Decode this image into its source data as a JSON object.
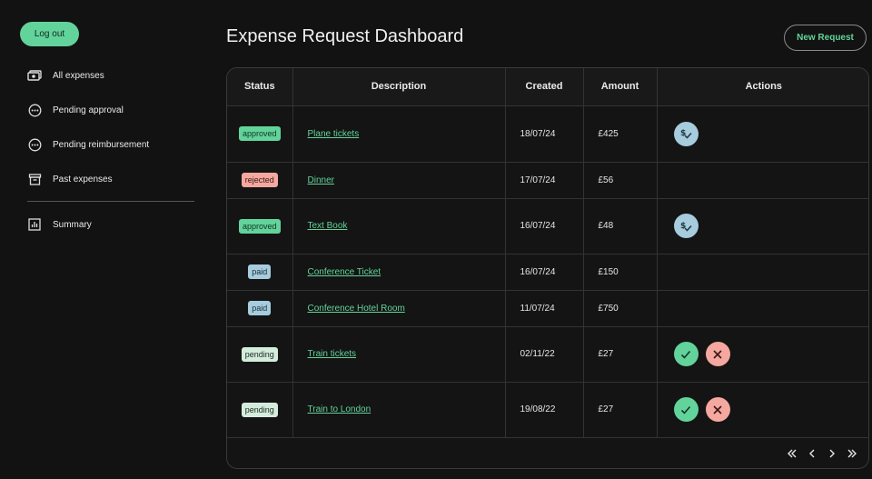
{
  "sidebar": {
    "logout_label": "Log out",
    "items": [
      {
        "label": "All expenses",
        "icon": "money-icon"
      },
      {
        "label": "Pending approval",
        "icon": "pending-icon"
      },
      {
        "label": "Pending reimbursement",
        "icon": "pending-icon"
      },
      {
        "label": "Past expenses",
        "icon": "archive-icon"
      },
      {
        "label": "Summary",
        "icon": "chart-icon"
      }
    ]
  },
  "header": {
    "title": "Expense Request Dashboard",
    "new_request_label": "New Request"
  },
  "table": {
    "columns": [
      "Status",
      "Description",
      "Created",
      "Amount",
      "Actions"
    ],
    "rows": [
      {
        "status": "approved",
        "description": "Plane tickets",
        "created": "18/07/24",
        "amount": "£425",
        "actions": "pay"
      },
      {
        "status": "rejected",
        "description": "Dinner",
        "created": "17/07/24",
        "amount": "£56",
        "actions": "none"
      },
      {
        "status": "approved",
        "description": "Text Book",
        "created": "16/07/24",
        "amount": "£48",
        "actions": "pay"
      },
      {
        "status": "paid",
        "description": "Conference Ticket",
        "created": "16/07/24",
        "amount": "£150",
        "actions": "none"
      },
      {
        "status": "paid",
        "description": "Conference Hotel Room",
        "created": "11/07/24",
        "amount": "£750",
        "actions": "none"
      },
      {
        "status": "pending",
        "description": "Train tickets",
        "created": "02/11/22",
        "amount": "£27",
        "actions": "review"
      },
      {
        "status": "pending",
        "description": "Train to London",
        "created": "19/08/22",
        "amount": "£27",
        "actions": "review"
      }
    ]
  },
  "pagination": {
    "icons": [
      "first-page-icon",
      "prev-page-icon",
      "next-page-icon",
      "last-page-icon"
    ]
  },
  "colors": {
    "accent": "#62d39a",
    "approved": "#62d39a",
    "rejected": "#f5a8a0",
    "paid": "#a6ccdd",
    "pending": "#d4ecdc",
    "background": "#121212"
  }
}
